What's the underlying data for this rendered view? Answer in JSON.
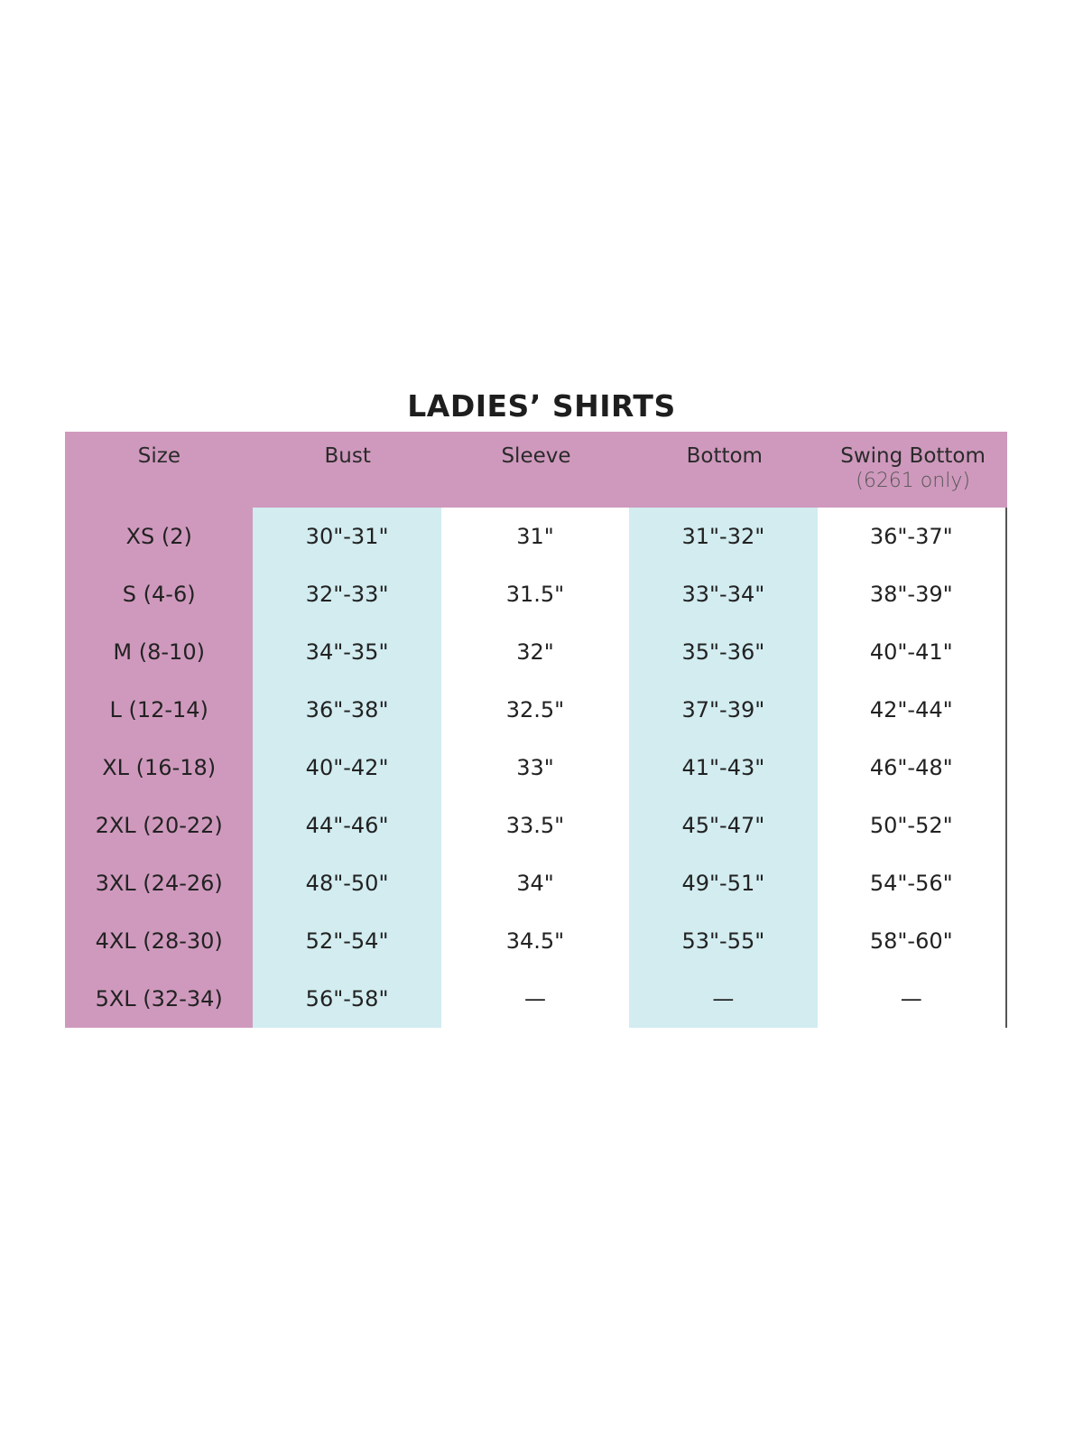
{
  "title": "LADIES’ SHIRTS",
  "headers": [
    {
      "label": "Size",
      "sub": ""
    },
    {
      "label": "Bust",
      "sub": ""
    },
    {
      "label": "Sleeve",
      "sub": ""
    },
    {
      "label": "Bottom",
      "sub": ""
    },
    {
      "label": "Swing Bottom",
      "sub": "(6261 only)"
    }
  ],
  "colors": {
    "header_bg": "#cf99bd",
    "alt_column_bg": "#d2ecf0"
  },
  "columns": {
    "size": [
      "XS (2)",
      "S (4-6)",
      "M (8-10)",
      "L (12-14)",
      "XL (16-18)",
      "2XL (20-22)",
      "3XL (24-26)",
      "4XL (28-30)",
      "5XL (32-34)"
    ],
    "bust": [
      "30\"-31\"",
      "32\"-33\"",
      "34\"-35\"",
      "36\"-38\"",
      "40\"-42\"",
      "44\"-46\"",
      "48\"-50\"",
      "52\"-54\"",
      "56\"-58\""
    ],
    "sleeve": [
      "31\"",
      "31.5\"",
      "32\"",
      "32.5\"",
      "33\"",
      "33.5\"",
      "34\"",
      "34.5\"",
      "—"
    ],
    "bottom": [
      "31\"-32\"",
      "33\"-34\"",
      "35\"-36\"",
      "37\"-39\"",
      "41\"-43\"",
      "45\"-47\"",
      "49\"-51\"",
      "53\"-55\"",
      "—"
    ],
    "swing_bottom": [
      "36\"-37\"",
      "38\"-39\"",
      "40\"-41\"",
      "42\"-44\"",
      "46\"-48\"",
      "50\"-52\"",
      "54\"-56\"",
      "58\"-60\"",
      "—"
    ]
  }
}
